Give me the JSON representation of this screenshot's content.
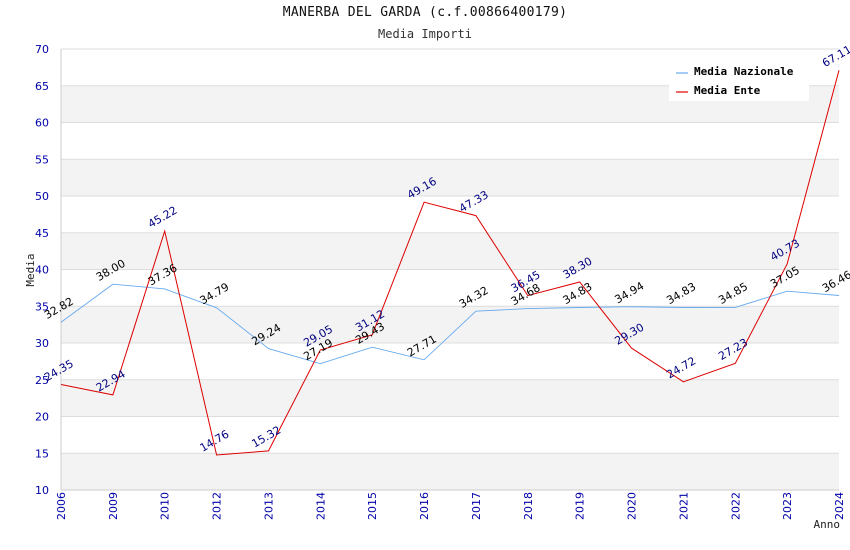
{
  "chart_data": {
    "type": "line",
    "title": "MANERBA DEL GARDA (c.f.00866400179)",
    "subtitle": "Media Importi",
    "ylabel": "Media",
    "xlabel": "Anno",
    "ylim": [
      10,
      70
    ],
    "yticks": [
      10,
      15,
      20,
      25,
      30,
      35,
      40,
      45,
      50,
      55,
      60,
      65,
      70
    ],
    "categories": [
      "2006",
      "2009",
      "2010",
      "2012",
      "2013",
      "2014",
      "2015",
      "2016",
      "2017",
      "2018",
      "2019",
      "2020",
      "2021",
      "2022",
      "2023",
      "2024"
    ],
    "grid": true,
    "legend_position": "top-right",
    "series": [
      {
        "name": "Media Nazionale",
        "color": "#66aaee",
        "values": [
          32.82,
          38.0,
          37.36,
          34.79,
          29.24,
          27.19,
          29.43,
          27.71,
          34.32,
          34.68,
          34.83,
          34.94,
          34.83,
          34.85,
          37.05,
          36.46
        ],
        "labels": [
          "32.82",
          "38.00",
          "37.36",
          "34.79",
          "29.24",
          "27.19",
          "29.43",
          "27.71",
          "34.32",
          "34.68",
          "34.83",
          "34.94",
          "34.83",
          "34.85",
          "37.05",
          "36.46"
        ]
      },
      {
        "name": "Media Ente",
        "color": "#dd0000",
        "values": [
          24.35,
          22.94,
          45.22,
          14.76,
          15.32,
          29.05,
          31.12,
          49.16,
          47.33,
          36.45,
          38.3,
          29.3,
          24.72,
          27.23,
          40.73,
          67.11
        ],
        "labels": [
          "24.35",
          "22.94",
          "45.22",
          "14.76",
          "15.32",
          "29.05",
          "31.12",
          "49.16",
          "47.33",
          "36.45",
          "38.30",
          "29.30",
          "24.72",
          "27.23",
          "40.73",
          "67.11"
        ]
      }
    ]
  }
}
